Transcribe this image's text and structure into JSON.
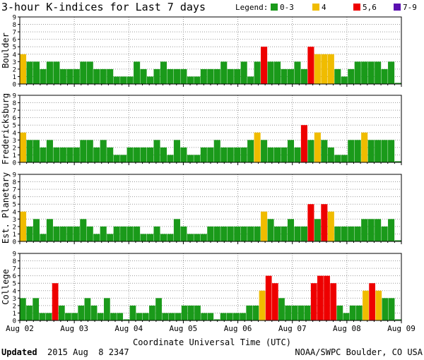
{
  "chart_data": {
    "type": "bar",
    "title": "3-hour K-indices for Last 7 days",
    "legend": {
      "label": "Legend:",
      "entries": [
        {
          "label": "0-3",
          "color": "#1a9a1a"
        },
        {
          "label": "4",
          "color": "#f0bc00"
        },
        {
          "label": "5,6",
          "color": "#ee0000"
        },
        {
          "label": "7-9",
          "color": "#5a0fb0"
        }
      ]
    },
    "ylim": [
      0,
      9
    ],
    "yticks": [
      "0",
      "1",
      "2",
      "3",
      "4",
      "5",
      "6",
      "7",
      "8",
      "9"
    ],
    "xticks": [
      "Aug 02",
      "Aug 03",
      "Aug 04",
      "Aug 05",
      "Aug 06",
      "Aug 07",
      "Aug 08",
      "Aug 09"
    ],
    "xlabel": "Coordinate Universal Time (UTC)",
    "panels": [
      {
        "name": "Boulder",
        "values": [
          4,
          3,
          3,
          2,
          3,
          3,
          2,
          2,
          2,
          3,
          3,
          2,
          2,
          2,
          1,
          1,
          1,
          3,
          2,
          1,
          2,
          3,
          2,
          2,
          2,
          1,
          1,
          2,
          2,
          2,
          3,
          2,
          2,
          3,
          1,
          3,
          5,
          3,
          3,
          2,
          2,
          3,
          2,
          5,
          4,
          4,
          4,
          2,
          1,
          2,
          3,
          3,
          3,
          3,
          2,
          3,
          0
        ]
      },
      {
        "name": "Fredericksburg",
        "values": [
          4,
          3,
          3,
          2,
          3,
          2,
          2,
          2,
          2,
          3,
          3,
          2,
          3,
          2,
          1,
          1,
          2,
          2,
          2,
          2,
          3,
          2,
          1,
          3,
          2,
          1,
          1,
          2,
          2,
          3,
          2,
          2,
          2,
          2,
          3,
          4,
          3,
          2,
          2,
          2,
          3,
          2,
          5,
          3,
          4,
          3,
          2,
          1,
          1,
          3,
          3,
          4,
          3,
          3,
          3,
          3,
          0
        ]
      },
      {
        "name": "Est. Planetary",
        "values": [
          4,
          2,
          3,
          1,
          3,
          2,
          2,
          2,
          2,
          3,
          2,
          1,
          2,
          1,
          2,
          2,
          2,
          2,
          1,
          1,
          2,
          1,
          1,
          3,
          2,
          1,
          1,
          1,
          2,
          2,
          2,
          2,
          2,
          2,
          2,
          2,
          4,
          3,
          2,
          2,
          3,
          2,
          2,
          5,
          3,
          5,
          4,
          2,
          2,
          2,
          2,
          3,
          3,
          3,
          2,
          3,
          0
        ]
      },
      {
        "name": "College",
        "values": [
          3,
          2,
          3,
          1,
          1,
          5,
          2,
          1,
          1,
          2,
          3,
          2,
          1,
          3,
          1,
          1,
          0,
          2,
          1,
          1,
          2,
          3,
          1,
          1,
          1,
          2,
          2,
          2,
          1,
          1,
          0,
          1,
          1,
          1,
          1,
          2,
          2,
          4,
          6,
          5,
          3,
          2,
          2,
          2,
          2,
          5,
          6,
          6,
          5,
          2,
          1,
          2,
          2,
          4,
          5,
          4,
          3,
          3,
          0
        ]
      }
    ]
  },
  "footer": {
    "updated_label": "Updated",
    "updated_value": "2015 Aug  8 2347",
    "credit": "NOAA/SWPC Boulder, CO USA"
  }
}
